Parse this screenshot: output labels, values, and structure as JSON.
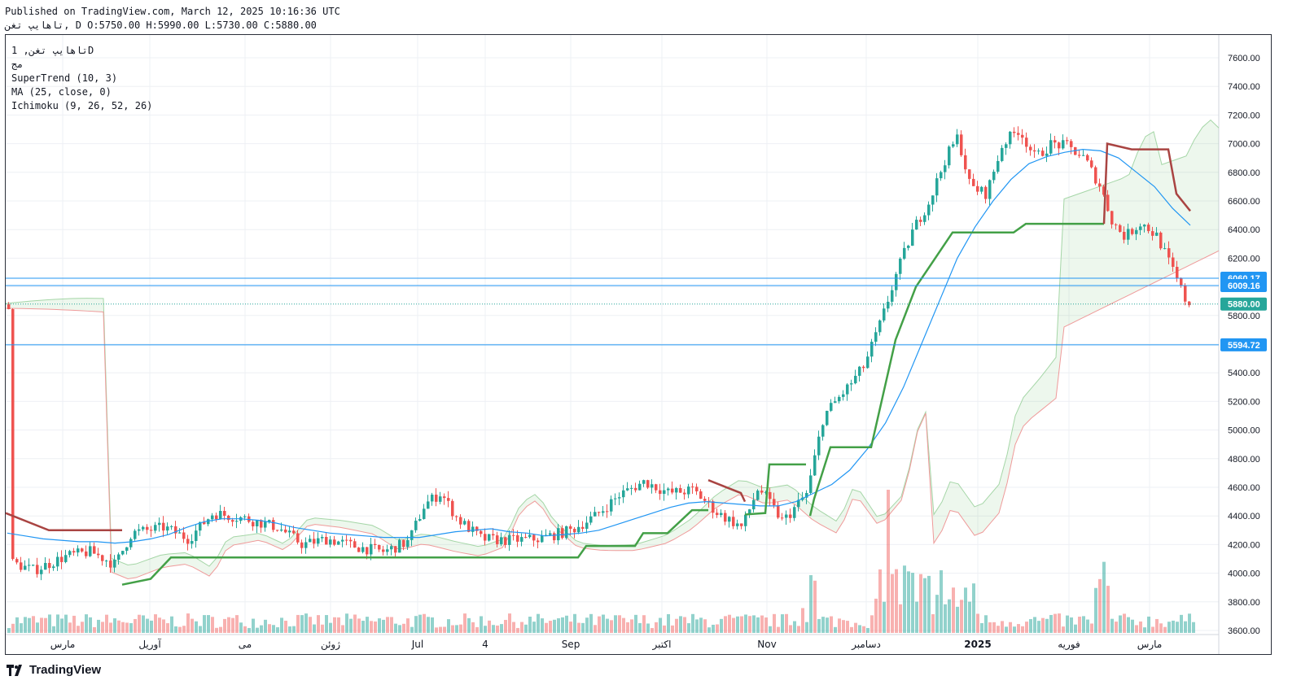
{
  "header": {
    "published": "Published on TradingView.com, March 12, 2025 10:16:36 UTC",
    "ohlc": "تاهایپ تغن, D O:5750.00 H:5990.00 L:5730.00 C:5880.00"
  },
  "legend": {
    "symbol": "تاهایپ تغن, 1D",
    "exchange": "مج",
    "supertrend": "SuperTrend (10, 3)",
    "ma": "MA (25, close, 0)",
    "ichimoku": "Ichimoku (9, 26, 52, 26)"
  },
  "brand": {
    "name": "TradingView"
  },
  "colors": {
    "up": "#26a69a",
    "down": "#ef5350",
    "trend_up": "#43a047",
    "trend_down": "#a94442",
    "ma": "#2196f3",
    "line_level": "#2196f3"
  },
  "chart_data": {
    "type": "candlestick",
    "y_axis": {
      "min": 3600,
      "max": 7600,
      "ticks": [
        "7600.00",
        "7400.00",
        "7200.00",
        "7000.00",
        "6800.00",
        "6600.00",
        "6400.00",
        "6200.00",
        "6000.00",
        "5800.00",
        "5600.00",
        "5400.00",
        "5200.00",
        "5000.00",
        "4800.00",
        "4600.00",
        "4400.00",
        "4200.00",
        "4000.00",
        "3800.00",
        "3600.00"
      ]
    },
    "x_labels": [
      "مارس",
      "آوریل",
      "می",
      "ژوئن",
      "Jul",
      "4",
      "Sep",
      "اکتبر",
      "Nov",
      "دسامبر",
      "2025",
      "فوریه",
      "مارس"
    ],
    "horizontal_levels": [
      {
        "label": "6060.17",
        "value": 6060.17
      },
      {
        "label": "6009.16",
        "value": 6009.16
      },
      {
        "label": "5594.72",
        "value": 5594.72
      }
    ],
    "last_price": {
      "label": "5880.00",
      "value": 5880
    },
    "ma_series": [
      4280,
      4260,
      4240,
      4230,
      4220,
      4220,
      4210,
      4220,
      4240,
      4270,
      4320,
      4360,
      4380,
      4380,
      4370,
      4350,
      4320,
      4300,
      4280,
      4270,
      4260,
      4250,
      4250,
      4250,
      4270,
      4290,
      4300,
      4310,
      4290,
      4280,
      4260,
      4270,
      4280,
      4300,
      4340,
      4380,
      4420,
      4460,
      4490,
      4500,
      4490,
      4480,
      4470,
      4470,
      4500,
      4560,
      4620,
      4720,
      4870,
      5050,
      5300,
      5600,
      5900,
      6200,
      6420,
      6600,
      6750,
      6860,
      6910,
      6940,
      6960,
      6950,
      6900,
      6800,
      6700,
      6550,
      6430
    ]
  }
}
